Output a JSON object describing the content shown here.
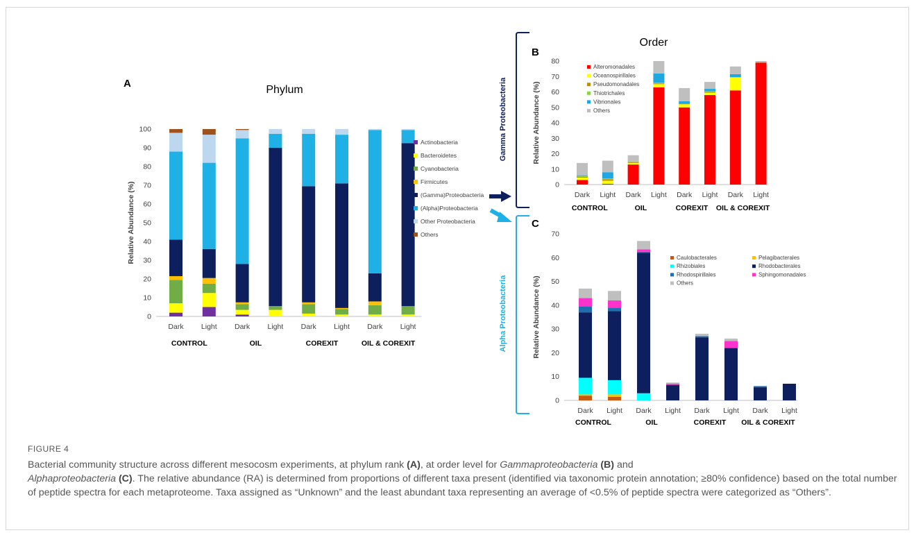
{
  "colors": {
    "Actinobacteria": "#7030a0",
    "Bacteroidetes": "#ffff00",
    "Cyanobacteria": "#70ad47",
    "Firmicutes": "#ffc000",
    "Gamma": "#0d1f5c",
    "Alpha": "#1fb0e6",
    "OtherProteo": "#bdd7ee",
    "PhylumOthers": "#a0521e",
    "Alteromonadales": "#ff0000",
    "Oceanospirillales": "#ffff00",
    "Pseudomonadales": "#bf8f00",
    "Thiotrichales": "#92d050",
    "Vibrionales": "#1fa8e0",
    "OrderOthers": "#bfbfbf",
    "Caulobacterales": "#c55a11",
    "Pelagibacterales": "#ffc000",
    "Rhizobiales": "#00ffff",
    "Rhodobacterales": "#0d1f5c",
    "Rhodospirillales": "#1f6fb0",
    "Sphingomonadales": "#ff33cc",
    "AlphaOthers": "#bfbfbf"
  },
  "bracket_labels": {
    "gamma": "Gamma Proteobacteria",
    "alpha": "Alpha Proteobacteria"
  },
  "chart_data": [
    {
      "panel": "A",
      "type": "bar",
      "stacked": true,
      "title": "Phylum",
      "ylabel": "Relative Abundance (%)",
      "ylim": [
        0,
        100
      ],
      "yticks": [
        0,
        10,
        20,
        30,
        40,
        50,
        60,
        70,
        80,
        90,
        100
      ],
      "categories": [
        "Dark",
        "Light",
        "Dark",
        "Light",
        "Dark",
        "Light",
        "Dark",
        "Light"
      ],
      "groups": [
        "CONTROL",
        "OIL",
        "COREXIT",
        "OIL & COREXIT"
      ],
      "legend_position": "right",
      "series": [
        {
          "name": "Actinobacteria",
          "color_key": "Actinobacteria",
          "values": [
            2,
            5,
            1,
            0,
            0,
            0,
            0,
            0
          ]
        },
        {
          "name": "Bacteroidetes",
          "color_key": "Bacteroidetes",
          "values": [
            5,
            7.5,
            2.5,
            3.5,
            1.5,
            1,
            1,
            1
          ]
        },
        {
          "name": "Cyanobacteria",
          "color_key": "Cyanobacteria",
          "values": [
            12.5,
            5,
            3,
            2,
            5,
            3,
            5,
            4.5
          ]
        },
        {
          "name": "Firmicutes",
          "color_key": "Firmicutes",
          "values": [
            2,
            3,
            1,
            0,
            1,
            0.5,
            2,
            0
          ]
        },
        {
          "name": "(Gamma)Proteobacteria",
          "color_key": "Gamma",
          "values": [
            19.5,
            15.5,
            20.5,
            84.5,
            62,
            66.5,
            15,
            87
          ]
        },
        {
          "name": "(Alpha)Proteobacteria",
          "color_key": "Alpha",
          "values": [
            47,
            46,
            67,
            7.5,
            28,
            26,
            76.5,
            7
          ]
        },
        {
          "name": "Other Proteobacteria",
          "color_key": "OtherProteo",
          "values": [
            10,
            15,
            4.5,
            2.5,
            2.5,
            3,
            0.5,
            0.5
          ]
        },
        {
          "name": "Others",
          "color_key": "PhylumOthers",
          "values": [
            2,
            3,
            0.5,
            0,
            0,
            0,
            0,
            0
          ]
        }
      ]
    },
    {
      "panel": "B",
      "type": "bar",
      "stacked": true,
      "title": "Order",
      "ylabel": "Relative Abundance (%)",
      "ylim": [
        0,
        80
      ],
      "yticks": [
        0,
        10,
        20,
        30,
        40,
        50,
        60,
        70,
        80
      ],
      "categories": [
        "Dark",
        "Light",
        "Dark",
        "Light",
        "Dark",
        "Light",
        "Dark",
        "Light"
      ],
      "groups": [
        "CONTROL",
        "OIL",
        "COREXIT",
        "OIL & COREXIT"
      ],
      "legend_position": "top-left",
      "series": [
        {
          "name": "Alteromonadales",
          "color_key": "Alteromonadales",
          "values": [
            3,
            0.5,
            13,
            63,
            50,
            58,
            61,
            79
          ]
        },
        {
          "name": "Oceanospirillales",
          "color_key": "Oceanospirillales",
          "values": [
            1.5,
            2,
            1,
            2,
            2,
            1.5,
            8.5,
            0
          ]
        },
        {
          "name": "Pseudomonadales",
          "color_key": "Pseudomonadales",
          "values": [
            0.5,
            1,
            0.5,
            0.5,
            0.5,
            0.5,
            0,
            0
          ]
        },
        {
          "name": "Thiotrichales",
          "color_key": "Thiotrichales",
          "values": [
            0.5,
            0.5,
            0.5,
            0.5,
            0,
            0.5,
            0,
            0.5
          ]
        },
        {
          "name": "Vibrionales",
          "color_key": "Vibrionales",
          "values": [
            0.5,
            4,
            0,
            6,
            1.5,
            1.5,
            2,
            0
          ]
        },
        {
          "name": "Others",
          "color_key": "OrderOthers",
          "values": [
            8,
            7.5,
            4,
            8,
            8.5,
            4.5,
            5,
            0.5
          ]
        }
      ]
    },
    {
      "panel": "C",
      "type": "bar",
      "stacked": true,
      "title": "",
      "ylabel": "Relative Abundance (%)",
      "ylim": [
        0,
        70
      ],
      "yticks": [
        0,
        10,
        20,
        30,
        40,
        50,
        60,
        70
      ],
      "categories": [
        "Dark",
        "Light",
        "Dark",
        "Light",
        "Dark",
        "Light",
        "Dark",
        "Light"
      ],
      "groups": [
        "CONTROL",
        "OIL",
        "COREXIT",
        "OIL & COREXIT"
      ],
      "legend_position": "top-right",
      "series": [
        {
          "name": "Caulobacterales",
          "color_key": "Caulobacterales",
          "values": [
            2,
            1.5,
            0,
            0,
            0,
            0,
            0,
            0
          ]
        },
        {
          "name": "Pelagibacterales",
          "color_key": "Pelagibacterales",
          "values": [
            0.5,
            1,
            0,
            0,
            0,
            0,
            0,
            0
          ]
        },
        {
          "name": "Rhizobiales",
          "color_key": "Rhizobiales",
          "values": [
            7,
            6,
            3,
            0,
            0,
            0,
            0,
            0
          ]
        },
        {
          "name": "Rhodobacterales",
          "color_key": "Rhodobacterales",
          "values": [
            27.5,
            29,
            59,
            6.5,
            26.5,
            22,
            5.5,
            7
          ]
        },
        {
          "name": "Rhodospirillales",
          "color_key": "Rhodospirillales",
          "values": [
            2.5,
            1.5,
            0.5,
            0,
            0.5,
            0,
            0.5,
            0
          ]
        },
        {
          "name": "Sphingomonadales",
          "color_key": "Sphingomonadales",
          "values": [
            3.5,
            3,
            1,
            0.5,
            0,
            3,
            0,
            0
          ]
        },
        {
          "name": "Others",
          "color_key": "AlphaOthers",
          "values": [
            4,
            4,
            3.5,
            0.5,
            1,
            1,
            0,
            0
          ]
        }
      ]
    }
  ],
  "caption": {
    "label": "FIGURE 4",
    "text_1": "Bacterial community structure across different mesocosm experiments, at phylum rank ",
    "A": "(A)",
    "text_2": ", at order level for ",
    "gamma_name": "Gammaproteobacteria",
    "B": "(B)",
    "text_3": " and",
    "alpha_name": "Alphaproteobacteria",
    "C": "(C)",
    "text_4": ". The relative abundance (RA) is determined from proportions of different taxa present (identified via taxonomic protein annotation; ≥80% confidence) based on the total number of peptide spectra for each metaproteome. Taxa assigned as “Unknown” and the least abundant taxa representing an average of <0.5% of peptide spectra were categorized as “Others”."
  }
}
